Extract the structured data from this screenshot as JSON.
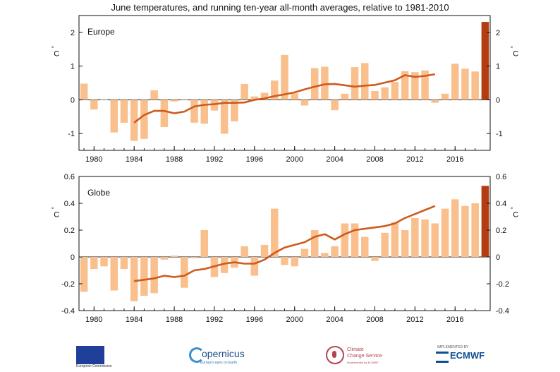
{
  "title": "June temperatures, and running ten-year all-month averages, relative to 1981-2010",
  "colors": {
    "bar": "#f9c08e",
    "bar_latest": "#b43c10",
    "line": "#cf5a1c",
    "axis": "#111111"
  },
  "chart_data": [
    {
      "type": "bar",
      "panel": "Europe",
      "unit": "°C",
      "ylim": [
        -1.5,
        2.5
      ],
      "yticks": [
        -1,
        0,
        1,
        2
      ],
      "ytick_labels": [
        "-1",
        "0",
        "1",
        "2"
      ],
      "xtick_labels": [
        "1980",
        "1984",
        "1988",
        "1992",
        "1996",
        "2000",
        "2004",
        "2008",
        "2012",
        "2016"
      ],
      "years": [
        1979,
        1980,
        1981,
        1982,
        1983,
        1984,
        1985,
        1986,
        1987,
        1988,
        1989,
        1990,
        1991,
        1992,
        1993,
        1994,
        1995,
        1996,
        1997,
        1998,
        1999,
        2000,
        2001,
        2002,
        2003,
        2004,
        2005,
        2006,
        2007,
        2008,
        2009,
        2010,
        2011,
        2012,
        2013,
        2014,
        2015,
        2016,
        2017,
        2018,
        2019
      ],
      "values": [
        0.48,
        -0.29,
        0.01,
        -0.97,
        -0.68,
        -1.22,
        -1.16,
        0.28,
        -0.81,
        -0.05,
        0.0,
        -0.68,
        -0.71,
        -0.32,
        -1.01,
        -0.64,
        0.47,
        0.1,
        0.21,
        0.57,
        1.33,
        0.19,
        -0.17,
        0.94,
        0.98,
        -0.31,
        0.18,
        0.97,
        1.09,
        0.26,
        0.37,
        0.53,
        0.85,
        0.82,
        0.87,
        -0.09,
        0.18,
        1.07,
        0.92,
        0.84,
        2.31
      ],
      "highlight_year": 2019,
      "running_mean": {
        "years": [
          1984,
          1985,
          1986,
          1987,
          1988,
          1989,
          1990,
          1991,
          1992,
          1993,
          1994,
          1995,
          1996,
          1997,
          1998,
          1999,
          2000,
          2001,
          2002,
          2003,
          2004,
          2005,
          2006,
          2007,
          2008,
          2009,
          2010,
          2011,
          2012,
          2013,
          2014
        ],
        "values": [
          -0.68,
          -0.45,
          -0.33,
          -0.33,
          -0.4,
          -0.35,
          -0.2,
          -0.15,
          -0.13,
          -0.09,
          -0.09,
          -0.08,
          0.0,
          0.04,
          0.11,
          0.16,
          0.22,
          0.31,
          0.39,
          0.46,
          0.47,
          0.43,
          0.39,
          0.42,
          0.44,
          0.51,
          0.58,
          0.73,
          0.68,
          0.71,
          0.76
        ]
      }
    },
    {
      "type": "bar",
      "panel": "Globe",
      "unit": "°C",
      "ylim": [
        -0.4,
        0.6
      ],
      "yticks": [
        -0.4,
        -0.2,
        0,
        0.2,
        0.4,
        0.6
      ],
      "ytick_labels": [
        "-0.4",
        "-0.2",
        "0",
        "0.2",
        "0.4",
        "0.6"
      ],
      "xtick_labels": [
        "1980",
        "1984",
        "1988",
        "1992",
        "1996",
        "2000",
        "2004",
        "2008",
        "2012",
        "2016"
      ],
      "years": [
        1979,
        1980,
        1981,
        1982,
        1983,
        1984,
        1985,
        1986,
        1987,
        1988,
        1989,
        1990,
        1991,
        1992,
        1993,
        1994,
        1995,
        1996,
        1997,
        1998,
        1999,
        2000,
        2001,
        2002,
        2003,
        2004,
        2005,
        2006,
        2007,
        2008,
        2009,
        2010,
        2011,
        2012,
        2013,
        2014,
        2015,
        2016,
        2017,
        2018,
        2019
      ],
      "values": [
        -0.26,
        -0.09,
        -0.07,
        -0.25,
        -0.09,
        -0.33,
        -0.29,
        -0.27,
        -0.02,
        0.01,
        -0.23,
        -0.01,
        0.2,
        -0.15,
        -0.12,
        -0.08,
        0.08,
        -0.14,
        0.09,
        0.36,
        -0.06,
        -0.07,
        0.06,
        0.2,
        0.03,
        0.08,
        0.25,
        0.25,
        0.15,
        -0.03,
        0.18,
        0.26,
        0.2,
        0.29,
        0.28,
        0.25,
        0.36,
        0.43,
        0.38,
        0.4,
        0.53
      ],
      "highlight_year": 2019,
      "running_mean": {
        "years": [
          1984,
          1985,
          1986,
          1987,
          1988,
          1989,
          1990,
          1991,
          1992,
          1993,
          1994,
          1995,
          1996,
          1997,
          1998,
          1999,
          2000,
          2001,
          2002,
          2003,
          2004,
          2005,
          2006,
          2007,
          2008,
          2009,
          2010,
          2011,
          2012,
          2013,
          2014
        ],
        "values": [
          -0.18,
          -0.17,
          -0.16,
          -0.14,
          -0.15,
          -0.14,
          -0.1,
          -0.09,
          -0.07,
          -0.05,
          -0.04,
          -0.05,
          -0.05,
          -0.02,
          0.03,
          0.07,
          0.09,
          0.11,
          0.15,
          0.17,
          0.13,
          0.17,
          0.2,
          0.21,
          0.22,
          0.23,
          0.25,
          0.29,
          0.32,
          0.35,
          0.38
        ]
      }
    }
  ],
  "logos": {
    "ec": {
      "caption": "European Commission"
    },
    "copernicus": {
      "word": "opernicus",
      "tagline": "Europe's eyes on Earth"
    },
    "c3s": {
      "line1": "Climate",
      "line2": "Change Service",
      "line3": "Implemented by ECMWF"
    },
    "ecmwf": {
      "small": "IMPLEMENTED BY",
      "word": "ECMWF"
    }
  }
}
